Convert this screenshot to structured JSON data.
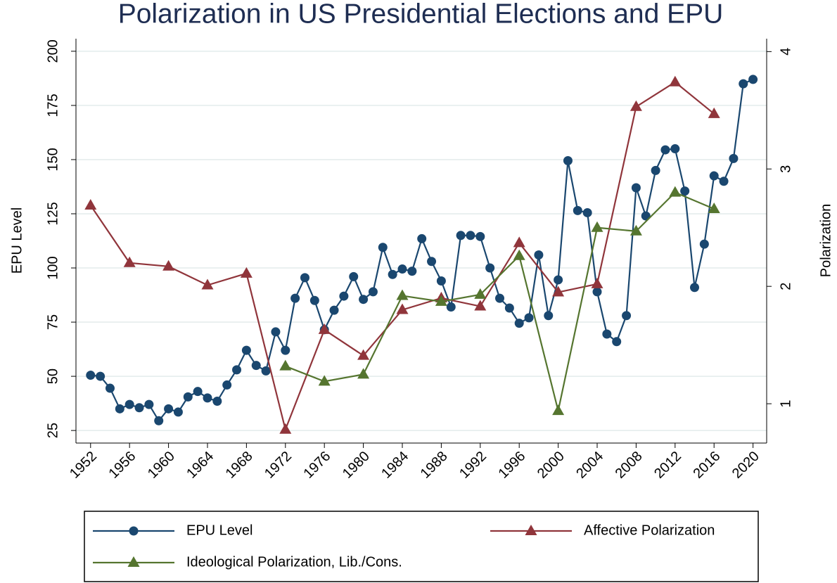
{
  "chart_data": {
    "type": "line",
    "title": "Polarization in US Presidential Elections and EPU",
    "y_label": "EPU Level",
    "y2_label": "Polarization",
    "xlim": [
      1950.5,
      2021.4
    ],
    "xticks": [
      1952,
      1956,
      1960,
      1964,
      1968,
      1972,
      1976,
      1980,
      1984,
      1988,
      1992,
      1996,
      2000,
      2004,
      2008,
      2012,
      2016,
      2020
    ],
    "ylim": [
      19.2,
      205.8
    ],
    "yticks": [
      25,
      50,
      75,
      100,
      125,
      150,
      175,
      200
    ],
    "y2lim": [
      0.665,
      4.11
    ],
    "y2ticks": [
      1,
      2,
      3,
      4
    ],
    "grid": true,
    "series": [
      {
        "name": "EPU Level",
        "color": "#1a476f",
        "marker": "circle",
        "x": [
          1952,
          1953,
          1954,
          1955,
          1956,
          1957,
          1958,
          1959,
          1960,
          1961,
          1962,
          1963,
          1964,
          1965,
          1966,
          1967,
          1968,
          1969,
          1970,
          1971,
          1972,
          1973,
          1974,
          1975,
          1976,
          1977,
          1978,
          1979,
          1980,
          1981,
          1982,
          1983,
          1984,
          1985,
          1986,
          1987,
          1988,
          1989,
          1990,
          1991,
          1992,
          1993,
          1994,
          1995,
          1996,
          1997,
          1998,
          1999,
          2000,
          2001,
          2002,
          2003,
          2004,
          2005,
          2006,
          2007,
          2008,
          2009,
          2010,
          2011,
          2012,
          2013,
          2014,
          2015,
          2016,
          2017,
          2018,
          2019,
          2020
        ],
        "values": [
          50.5,
          50,
          44.5,
          35,
          37,
          35.5,
          37,
          29.5,
          35,
          33.5,
          40.5,
          43,
          40,
          38.5,
          46,
          53,
          62,
          55,
          52.5,
          70.5,
          62,
          86,
          95.5,
          85,
          71.5,
          80.5,
          87,
          96,
          85.5,
          89,
          109.5,
          97,
          99.5,
          98.5,
          113.5,
          103,
          94,
          82,
          115,
          115,
          114.5,
          100,
          86,
          81.5,
          74.5,
          77,
          106,
          78,
          94.5,
          149.5,
          126.5,
          125.5,
          89,
          69.5,
          66,
          78,
          137,
          124,
          145,
          154.5,
          155,
          135.5,
          91,
          111,
          142.5,
          140,
          150.5,
          185,
          187
        ]
      },
      {
        "name": "Affective Polarization",
        "color": "#90353b",
        "marker": "triangle",
        "axis": "y2",
        "x": [
          1952,
          1956,
          1960,
          1964,
          1968,
          1972,
          1976,
          1980,
          1984,
          1988,
          1992,
          1996,
          2000,
          2004,
          2008,
          2012,
          2016
        ],
        "values": [
          2.69,
          2.2,
          2.17,
          2.01,
          2.11,
          0.78,
          1.63,
          1.41,
          1.8,
          1.9,
          1.83,
          2.37,
          1.95,
          2.02,
          3.53,
          3.74,
          3.47
        ]
      },
      {
        "name": "Ideological Polarization, Lib./Cons.",
        "color": "#55752f",
        "marker": "triangle",
        "axis": "y2",
        "x": [
          1972,
          1976,
          1980,
          1984,
          1988,
          1992,
          1996,
          2000,
          2004,
          2008,
          2012,
          2016
        ],
        "values": [
          1.32,
          1.19,
          1.25,
          1.92,
          1.87,
          1.93,
          2.26,
          0.94,
          2.5,
          2.47,
          2.8,
          2.66
        ]
      }
    ]
  }
}
